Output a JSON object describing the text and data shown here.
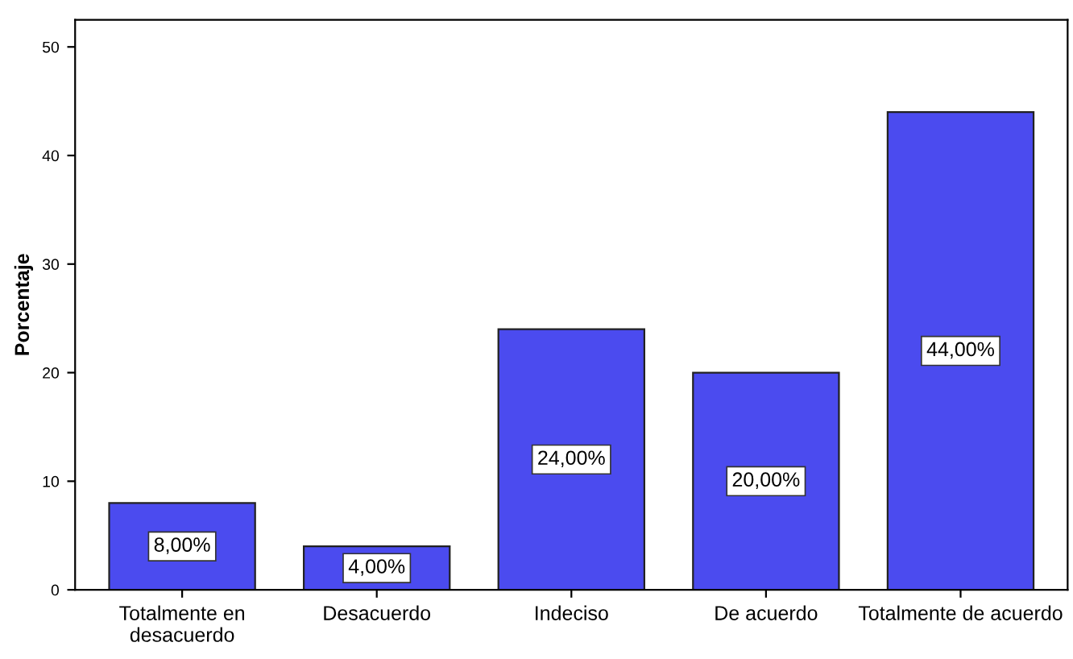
{
  "chart_data": {
    "type": "bar",
    "ylabel": "Porcentaje",
    "categories": [
      "Totalmente en desacuerdo",
      "Desacuerdo",
      "Indeciso",
      "De acuerdo",
      "Totalmente de acuerdo"
    ],
    "values": [
      8,
      4,
      24,
      20,
      44
    ],
    "value_labels": [
      "8,00%",
      "4,00%",
      "24,00%",
      "20,00%",
      "44,00%"
    ],
    "color": "#4b4bef",
    "ylim": [
      0,
      52.5
    ],
    "yticks": [
      0,
      10,
      20,
      30,
      40,
      50
    ],
    "grid": false
  }
}
